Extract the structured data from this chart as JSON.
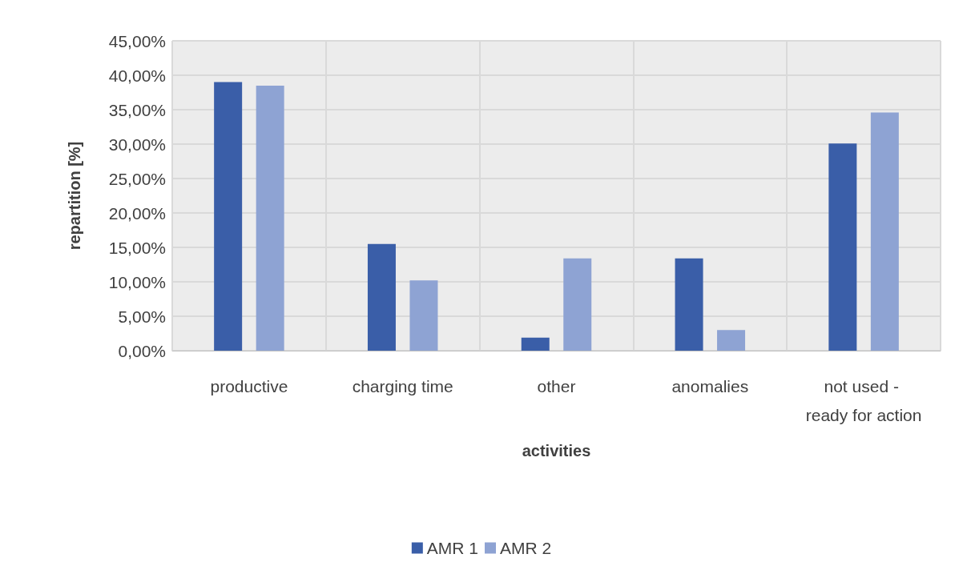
{
  "chart_data": {
    "type": "bar",
    "xlabel": "activities",
    "ylabel": "repartition [%]",
    "categories": [
      "productive",
      "charging time",
      "other",
      "anomalies",
      "not used - ready for action"
    ],
    "series": [
      {
        "name": "AMR 1",
        "color": "#3a5ea8",
        "values": [
          39.0,
          15.5,
          1.9,
          13.4,
          30.1
        ]
      },
      {
        "name": "AMR 2",
        "color": "#8ea3d3",
        "values": [
          38.5,
          10.2,
          13.4,
          3.0,
          34.6
        ]
      }
    ],
    "ylim": [
      0,
      45
    ],
    "yticks": [
      {
        "value": 0,
        "label": "0,00%"
      },
      {
        "value": 5,
        "label": "5,00%"
      },
      {
        "value": 10,
        "label": "10,00%"
      },
      {
        "value": 15,
        "label": "15,00%"
      },
      {
        "value": 20,
        "label": "20,00%"
      },
      {
        "value": 25,
        "label": "25,00%"
      },
      {
        "value": 30,
        "label": "30,00%"
      },
      {
        "value": 35,
        "label": "35,00%"
      },
      {
        "value": 40,
        "label": "40,00%"
      },
      {
        "value": 45,
        "label": "45,00%"
      }
    ],
    "grid": true,
    "legend": "bottom"
  }
}
